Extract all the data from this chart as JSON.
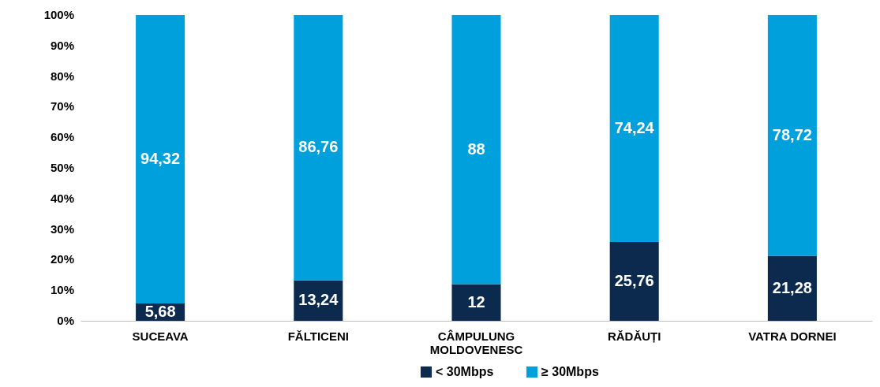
{
  "chart_data": {
    "type": "bar",
    "stacked": true,
    "categories": [
      "SUCEAVA",
      "FĂLTICENI",
      "CÂMPULUNG MOLDOVENESC",
      "RĂDĂUȚI",
      "VATRA DORNEI"
    ],
    "series": [
      {
        "name": "< 30Mbps",
        "color": "#0c2a4e",
        "values": [
          5.68,
          13.24,
          12,
          25.76,
          21.28
        ],
        "value_labels": [
          "5,68",
          "13,24",
          "12",
          "25,76",
          "21,28"
        ]
      },
      {
        "name": "≥ 30Mbps",
        "color": "#00a0dc",
        "values": [
          94.32,
          86.76,
          88,
          74.24,
          78.72
        ],
        "value_labels": [
          "94,32",
          "86,76",
          "88",
          "74,24",
          "78,72"
        ]
      }
    ],
    "ylim": [
      0,
      100
    ],
    "yticks": [
      {
        "value": 0,
        "label": "0%"
      },
      {
        "value": 10,
        "label": "10%"
      },
      {
        "value": 20,
        "label": "20%"
      },
      {
        "value": 30,
        "label": "30%"
      },
      {
        "value": 40,
        "label": "40%"
      },
      {
        "value": 50,
        "label": "50%"
      },
      {
        "value": 60,
        "label": "60%"
      },
      {
        "value": 70,
        "label": "70%"
      },
      {
        "value": 80,
        "label": "80%"
      },
      {
        "value": 90,
        "label": "90%"
      },
      {
        "value": 100,
        "label": "100%"
      }
    ],
    "grid": false,
    "legend": "bottom"
  }
}
